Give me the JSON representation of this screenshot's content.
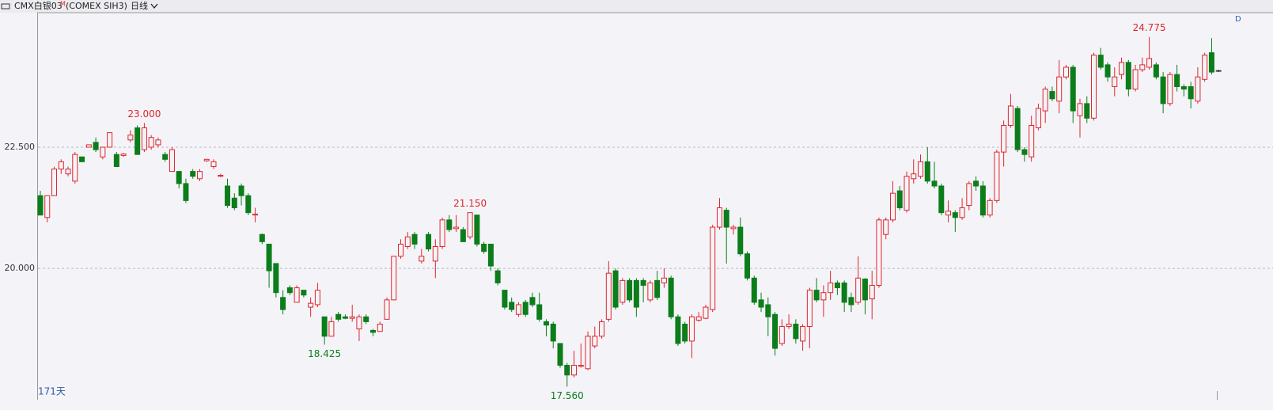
{
  "chart_data": {
    "type": "candlestick",
    "header": {
      "title": "CMX白银03",
      "title_sup": "M",
      "contract": "(COMEX SIH3)",
      "period": "日线",
      "count": "171天",
      "right_label": "D"
    },
    "up_color": "#e0242c",
    "down_color": "#0b7d1a",
    "flat_color": "#333333",
    "ylim": [
      17.29,
      25.26
    ],
    "yticks": [
      {
        "value": 20,
        "label": "20.000"
      },
      {
        "value": 22.5,
        "label": "22.500"
      }
    ],
    "grid": true,
    "annotations": [
      {
        "label": "23.000",
        "value": 23
      },
      {
        "label": "18.425",
        "value": 18.425
      },
      {
        "label": "21.150",
        "value": 21.15
      },
      {
        "label": "17.560",
        "value": 17.56
      },
      {
        "label": "24.775",
        "value": 24.775
      }
    ],
    "open": [
      21.5,
      21.05,
      21.5,
      22.05,
      21.95,
      21.8,
      22.3,
      22.5,
      22.6,
      22.3,
      22.5,
      22.35,
      22.33,
      22.65,
      22.9,
      22.45,
      22.5,
      22.55,
      22.35,
      22.0,
      22.0,
      21.75,
      22.0,
      21.85,
      22.22,
      22.1,
      21.9,
      21.7,
      21.45,
      21.7,
      21.5,
      21.1,
      20.7,
      20.5,
      20.1,
      19.4,
      19.6,
      19.3,
      19.55,
      19.2,
      19.25,
      19.0,
      18.6,
      19.05,
      19.0,
      18.97,
      18.75,
      19.0,
      18.72,
      18.7,
      18.95,
      19.35,
      20.25,
      20.45,
      20.7,
      20.15,
      20.7,
      20.15,
      20.45,
      21.0,
      20.82,
      20.8,
      20.65,
      21.1,
      20.5,
      20.5,
      19.95,
      19.55,
      19.3,
      19.05,
      19.3,
      19.4,
      19.25,
      18.9,
      18.85,
      18.45,
      18.0,
      17.8,
      17.98,
      17.93,
      18.4,
      18.6,
      18.95,
      19.95,
      19.3,
      19.75,
      19.75,
      19.75,
      19.35,
      19.75,
      19.7,
      19.8,
      19.0,
      18.85,
      18.5,
      18.93,
      18.97,
      19.15,
      20.85,
      21.2,
      20.82,
      20.85,
      20.3,
      19.8,
      19.35,
      19.25,
      19.05,
      18.45,
      18.8,
      18.85,
      18.5,
      18.8,
      19.55,
      19.35,
      19.5,
      19.7,
      19.7,
      19.4,
      19.3,
      19.78,
      19.37,
      19.65,
      20.7,
      21.0,
      21.6,
      21.2,
      21.85,
      21.9,
      22.2,
      21.8,
      21.7,
      21.1,
      21.15,
      21.05,
      21.3,
      21.8,
      21.7,
      21.1,
      21.4,
      22.4,
      22.95,
      23.3,
      22.45,
      22.3,
      22.9,
      23.25,
      23.65,
      23.45,
      23.95,
      24.15,
      23.15,
      23.4,
      23.1,
      24.4,
      24.2,
      23.75,
      24.0,
      24.25,
      23.7,
      24.1,
      24.15,
      24.2,
      23.95,
      23.4,
      24.0,
      23.75,
      23.75,
      23.45,
      23.9,
      24.45,
      24.08
    ],
    "high": [
      21.6,
      21.5,
      22.1,
      22.25,
      22.1,
      22.4,
      22.3,
      22.55,
      22.7,
      22.5,
      22.8,
      22.4,
      22.38,
      22.85,
      22.95,
      23.0,
      22.75,
      22.7,
      22.4,
      22.5,
      22.0,
      21.85,
      22.05,
      22.05,
      22.26,
      22.25,
      21.95,
      21.85,
      21.55,
      21.75,
      21.55,
      21.25,
      20.72,
      20.5,
      20.1,
      19.55,
      19.65,
      19.65,
      19.55,
      19.4,
      19.7,
      19.0,
      19.0,
      19.1,
      19.05,
      19.25,
      19.05,
      19.05,
      18.75,
      18.9,
      19.4,
      20.25,
      20.6,
      20.75,
      20.75,
      20.4,
      20.75,
      20.6,
      21.05,
      21.1,
      21.1,
      20.85,
      21.15,
      21.1,
      20.55,
      20.5,
      20.0,
      19.55,
      19.4,
      19.3,
      19.35,
      19.5,
      19.5,
      18.95,
      18.9,
      18.45,
      18.05,
      18.3,
      18.45,
      18.7,
      18.8,
      18.95,
      20.15,
      20.0,
      19.8,
      19.8,
      19.8,
      19.8,
      19.75,
      19.95,
      20.0,
      19.85,
      19.05,
      18.9,
      19.05,
      19.1,
      19.25,
      20.9,
      21.45,
      21.25,
      20.9,
      21.05,
      20.35,
      19.85,
      19.5,
      19.4,
      19.1,
      18.95,
      19.05,
      18.95,
      18.85,
      19.6,
      19.8,
      19.65,
      19.95,
      19.75,
      19.75,
      19.5,
      20.25,
      19.8,
      19.95,
      21.05,
      21.05,
      21.8,
      21.7,
      22.0,
      22.25,
      22.35,
      22.5,
      22.2,
      21.75,
      21.4,
      21.2,
      21.45,
      21.8,
      21.9,
      21.8,
      21.45,
      22.45,
      23.05,
      23.6,
      23.35,
      22.5,
      23.15,
      23.4,
      23.75,
      23.75,
      24.3,
      24.2,
      24.2,
      23.5,
      23.55,
      24.45,
      24.55,
      24.25,
      24.15,
      24.35,
      24.3,
      24.2,
      24.35,
      24.775,
      24.25,
      24.05,
      24.05,
      24.2,
      23.8,
      23.85,
      24.15,
      24.45,
      24.75,
      24.1
    ],
    "low": [
      21.1,
      20.95,
      21.5,
      21.95,
      21.9,
      21.75,
      22.2,
      22.5,
      22.4,
      22.25,
      22.5,
      22.1,
      22.3,
      22.6,
      22.35,
      22.4,
      22.45,
      22.5,
      22.2,
      22.0,
      21.65,
      21.35,
      21.85,
      21.8,
      22.2,
      22.05,
      21.88,
      21.25,
      21.2,
      21.3,
      21.1,
      20.95,
      20.5,
      19.6,
      19.4,
      19.05,
      19.45,
      19.3,
      19.4,
      19.0,
      19.2,
      18.425,
      18.6,
      18.9,
      18.95,
      18.9,
      18.5,
      18.85,
      18.6,
      18.7,
      18.95,
      19.35,
      20.2,
      20.4,
      20.4,
      20.1,
      20.35,
      19.8,
      20.4,
      20.75,
      20.75,
      20.55,
      20.6,
      20.45,
      20.3,
      19.95,
      19.65,
      19.15,
      19.1,
      19.0,
      19.0,
      19.2,
      18.9,
      18.6,
      18.35,
      17.95,
      17.56,
      17.75,
      17.95,
      17.9,
      18.35,
      18.55,
      18.9,
      19.15,
      19.25,
      19.3,
      19.0,
      19.3,
      19.3,
      19.35,
      19.6,
      18.95,
      18.4,
      18.45,
      18.15,
      18.9,
      18.95,
      19.1,
      20.8,
      20.1,
      20.7,
      20.25,
      19.75,
      19.25,
      19.1,
      18.6,
      18.2,
      18.4,
      18.75,
      18.45,
      18.3,
      18.35,
      19.3,
      19.0,
      19.35,
      19.45,
      19.1,
      19.1,
      19.25,
      19.05,
      18.95,
      19.6,
      20.6,
      20.95,
      21.2,
      21.15,
      21.75,
      21.85,
      21.75,
      21.65,
      21.1,
      20.95,
      20.75,
      21.0,
      21.2,
      21.6,
      21.05,
      21.05,
      21.35,
      22.1,
      22.9,
      22.4,
      22.2,
      22.2,
      22.85,
      23.0,
      23.45,
      23.2,
      23.9,
      23.0,
      22.7,
      23.0,
      23.05,
      24.1,
      23.85,
      23.55,
      23.9,
      23.55,
      23.65,
      24.05,
      24.1,
      23.9,
      23.2,
      23.35,
      23.65,
      23.55,
      23.3,
      23.4,
      23.85,
      24.0,
      24.05
    ],
    "close": [
      21.1,
      21.5,
      22.05,
      22.2,
      22.05,
      22.35,
      22.2,
      22.55,
      22.45,
      22.5,
      22.8,
      22.1,
      22.36,
      22.75,
      22.35,
      22.9,
      22.7,
      22.65,
      22.25,
      22.45,
      21.75,
      21.4,
      21.9,
      22.0,
      22.25,
      22.2,
      21.92,
      21.3,
      21.25,
      21.5,
      21.15,
      21.12,
      20.55,
      19.95,
      19.5,
      19.15,
      19.5,
      19.6,
      19.45,
      19.28,
      19.55,
      18.6,
      18.9,
      18.95,
      18.97,
      19.0,
      19.0,
      18.9,
      18.68,
      18.85,
      19.35,
      20.25,
      20.5,
      20.65,
      20.5,
      20.25,
      20.4,
      20.45,
      21.0,
      20.8,
      20.85,
      20.55,
      21.15,
      20.5,
      20.35,
      20.05,
      19.7,
      19.2,
      19.15,
      19.25,
      19.05,
      19.25,
      18.95,
      18.83,
      18.5,
      18.0,
      17.8,
      18.0,
      18.0,
      18.6,
      18.6,
      18.9,
      19.9,
      19.2,
      19.75,
      19.35,
      19.2,
      19.65,
      19.7,
      19.4,
      19.8,
      19.0,
      18.45,
      18.5,
      19.0,
      19.0,
      19.2,
      20.85,
      21.25,
      20.85,
      20.85,
      20.3,
      19.8,
      19.3,
      19.2,
      19.0,
      18.35,
      18.8,
      18.85,
      18.55,
      18.8,
      19.55,
      19.35,
      19.5,
      19.7,
      19.6,
      19.3,
      19.25,
      19.8,
      19.35,
      19.65,
      21.0,
      21.0,
      21.55,
      21.25,
      21.9,
      21.95,
      22.2,
      21.8,
      21.7,
      21.15,
      21.18,
      21.05,
      21.25,
      21.75,
      21.7,
      21.1,
      21.4,
      22.4,
      22.95,
      23.35,
      22.45,
      22.35,
      22.95,
      23.3,
      23.7,
      23.5,
      23.95,
      24.15,
      23.25,
      23.4,
      23.1,
      24.4,
      24.15,
      23.95,
      23.95,
      24.25,
      23.7,
      24.1,
      24.2,
      24.33,
      23.95,
      23.4,
      24.0,
      23.75,
      23.7,
      23.5,
      23.95,
      24.4,
      24.05,
      24.08
    ]
  }
}
